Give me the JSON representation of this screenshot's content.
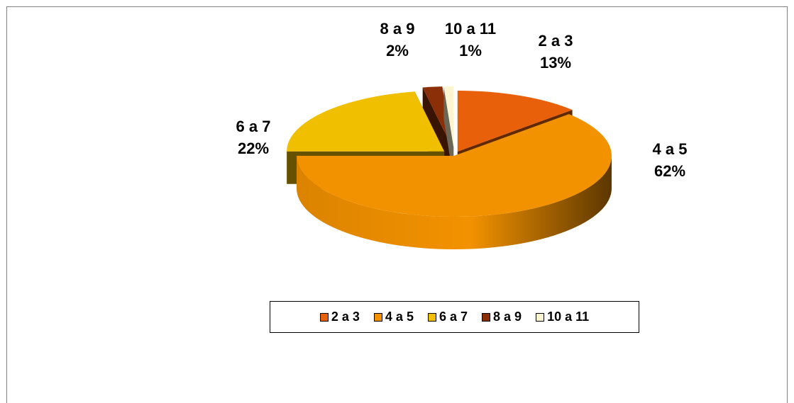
{
  "chart_data": {
    "type": "pie",
    "style": "3d-exploded",
    "categories": [
      "2 a 3",
      "4 a 5",
      "6 a 7",
      "8 a 9",
      "10 a 11"
    ],
    "values": [
      13,
      62,
      22,
      2,
      1
    ],
    "value_unit": "%",
    "colors": [
      "#e8600a",
      "#f39200",
      "#f0c000",
      "#8a2f08",
      "#fcf5d0"
    ],
    "data_labels": [
      {
        "category": "2 a 3",
        "text": "13%"
      },
      {
        "category": "4 a 5",
        "text": "62%"
      },
      {
        "category": "6 a 7",
        "text": "22%"
      },
      {
        "category": "8 a 9",
        "text": "2%"
      },
      {
        "category": "10 a 11",
        "text": "1%"
      }
    ],
    "legend": {
      "placement": "bottom",
      "entries": [
        "2 a 3",
        "4 a 5",
        "6 a 7",
        "8 a 9",
        "10 a 11"
      ]
    }
  }
}
